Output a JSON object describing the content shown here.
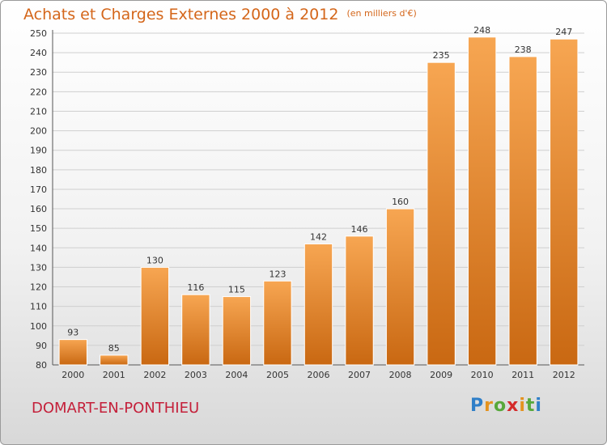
{
  "header": {
    "title": "Achats et Charges Externes 2000 à 2012",
    "unit": "(en milliers d'€)"
  },
  "footer": {
    "commune": "DOMART-EN-PONTHIEU",
    "logo": "Proxiti"
  },
  "colors": {
    "bar_light": "#f7a652",
    "bar_dark": "#c96812",
    "title": "#d4661a",
    "commune": "#c4203a",
    "grid": "#cfcfcf"
  },
  "chart_data": {
    "type": "bar",
    "title": "Achats et Charges Externes 2000 à 2012",
    "subtitle": "(en milliers d'€)",
    "xlabel": "",
    "ylabel": "",
    "categories": [
      "2000",
      "2001",
      "2002",
      "2003",
      "2004",
      "2005",
      "2006",
      "2007",
      "2008",
      "2009",
      "2010",
      "2011",
      "2012"
    ],
    "values": [
      93,
      85,
      130,
      116,
      115,
      123,
      142,
      146,
      160,
      235,
      248,
      238,
      247
    ],
    "ylim": [
      80,
      250
    ],
    "yticks": [
      80,
      90,
      100,
      110,
      120,
      130,
      140,
      150,
      160,
      170,
      180,
      190,
      200,
      210,
      220,
      230,
      240,
      250
    ],
    "grid": true,
    "legend": "none"
  }
}
